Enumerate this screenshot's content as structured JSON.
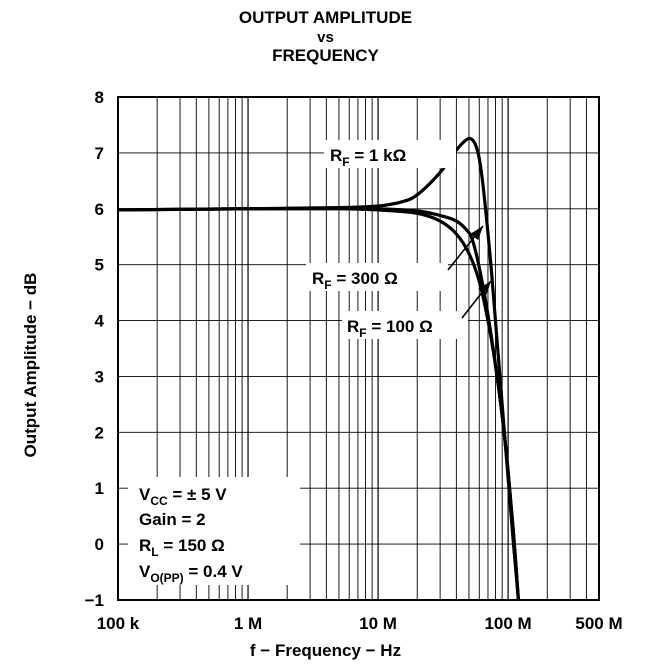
{
  "chart_data": {
    "type": "line",
    "title": "OUTPUT AMPLITUDE",
    "title_line2": "vs",
    "title_line3": "FREQUENCY",
    "xlabel": "f − Frequency − Hz",
    "ylabel": "Output Amplitude − dB",
    "x_scale": "log",
    "xlim": [
      100000,
      500000000
    ],
    "ylim": [
      -1,
      8
    ],
    "grid": true,
    "x_ticks": [
      {
        "value": 100000,
        "label": "100 k"
      },
      {
        "value": 1000000,
        "label": "1 M"
      },
      {
        "value": 10000000,
        "label": "10 M"
      },
      {
        "value": 100000000,
        "label": "100 M"
      },
      {
        "value": 500000000,
        "label": "500 M"
      }
    ],
    "y_ticks": [
      {
        "value": -1,
        "label": "−1"
      },
      {
        "value": 0,
        "label": "0"
      },
      {
        "value": 1,
        "label": "1"
      },
      {
        "value": 2,
        "label": "2"
      },
      {
        "value": 3,
        "label": "3"
      },
      {
        "value": 4,
        "label": "4"
      },
      {
        "value": 5,
        "label": "5"
      },
      {
        "value": 6,
        "label": "6"
      },
      {
        "value": 7,
        "label": "7"
      },
      {
        "value": 8,
        "label": "8"
      }
    ],
    "series": [
      {
        "name": "R_F = 1 kΩ",
        "x": [
          100000,
          1000000,
          5000000,
          10000000,
          15000000,
          20000000,
          30000000,
          40000000,
          48000000,
          52000000,
          56000000,
          60000000,
          65000000,
          75000000,
          90000000,
          110000000,
          120000000
        ],
        "y": [
          5.98,
          6.0,
          6.02,
          6.05,
          6.12,
          6.25,
          6.65,
          7.05,
          7.24,
          7.25,
          7.15,
          6.9,
          6.3,
          4.8,
          2.5,
          0.0,
          -1.0
        ]
      },
      {
        "name": "R_F = 300 Ω",
        "x": [
          100000,
          1000000,
          5000000,
          10000000,
          20000000,
          30000000,
          40000000,
          48000000,
          53000000,
          60000000,
          70000000,
          80000000,
          90000000,
          100000000,
          110000000,
          120000000
        ],
        "y": [
          5.98,
          6.0,
          6.01,
          6.0,
          5.96,
          5.88,
          5.78,
          5.62,
          5.45,
          4.95,
          4.1,
          3.2,
          2.3,
          1.3,
          0.2,
          -1.0
        ]
      },
      {
        "name": "R_F = 100 Ω",
        "x": [
          100000,
          1000000,
          5000000,
          10000000,
          20000000,
          30000000,
          40000000,
          50000000,
          60000000,
          70000000,
          80000000,
          90000000,
          100000000,
          110000000,
          120000000
        ],
        "y": [
          5.98,
          6.0,
          6.0,
          5.98,
          5.92,
          5.78,
          5.55,
          5.2,
          4.7,
          4.0,
          3.2,
          2.3,
          1.3,
          0.2,
          -1.0
        ]
      }
    ],
    "annotations": [
      {
        "label": "R_F = 1 kΩ",
        "main": "R",
        "sub": "F",
        "rest": " = 1 kΩ"
      },
      {
        "label": "R_F = 300 Ω",
        "main": "R",
        "sub": "F",
        "rest": " = 300 Ω"
      },
      {
        "label": "R_F = 100 Ω",
        "main": "R",
        "sub": "F",
        "rest": " = 100 Ω"
      }
    ],
    "conditions": [
      {
        "main": "V",
        "sub": "CC",
        "rest": " = ± 5 V"
      },
      {
        "main": "Gain = 2",
        "sub": "",
        "rest": ""
      },
      {
        "main": "R",
        "sub": "L",
        "rest": " = 150 Ω"
      },
      {
        "main": "V",
        "sub": "O(PP)",
        "rest": " = 0.4 V"
      }
    ]
  }
}
